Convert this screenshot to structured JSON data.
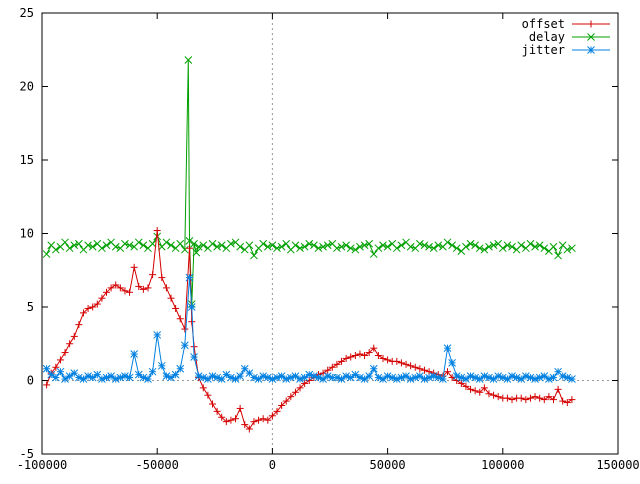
{
  "chart_data": {
    "type": "line",
    "xlim": [
      -100000,
      150000
    ],
    "ylim": [
      -5,
      25
    ],
    "x_ticks": [
      -100000,
      -50000,
      0,
      50000,
      100000,
      150000
    ],
    "x_tick_labels": [
      "-100000",
      "-50000",
      "0",
      "50000",
      "100000",
      "150000"
    ],
    "y_ticks": [
      -5,
      0,
      5,
      10,
      15,
      20,
      25
    ],
    "y_tick_labels": [
      "-5",
      "0",
      "5",
      "10",
      "15",
      "20",
      "25"
    ],
    "grid": false,
    "zero_axes": "dotted",
    "legend_position": "top-right",
    "series": [
      {
        "name": "offset",
        "color": "#d40000",
        "marker": "plus",
        "x": [
          -98000,
          -96000,
          -94000,
          -92000,
          -90000,
          -88000,
          -86000,
          -84000,
          -82000,
          -80000,
          -78000,
          -76000,
          -74000,
          -72000,
          -70000,
          -68000,
          -66000,
          -64000,
          -62000,
          -60000,
          -58000,
          -56000,
          -54000,
          -52000,
          -50000,
          -48000,
          -46000,
          -44000,
          -42000,
          -40000,
          -38000,
          -36000,
          -35000,
          -34000,
          -32000,
          -30000,
          -28000,
          -26000,
          -24000,
          -22000,
          -20000,
          -18000,
          -16000,
          -14000,
          -12000,
          -10000,
          -8000,
          -6000,
          -4000,
          -2000,
          0,
          2000,
          4000,
          6000,
          8000,
          10000,
          12000,
          14000,
          16000,
          18000,
          20000,
          22000,
          24000,
          26000,
          28000,
          30000,
          32000,
          34000,
          36000,
          38000,
          40000,
          42000,
          44000,
          46000,
          48000,
          50000,
          52000,
          54000,
          56000,
          58000,
          60000,
          62000,
          64000,
          66000,
          68000,
          70000,
          72000,
          74000,
          76000,
          78000,
          80000,
          82000,
          84000,
          86000,
          88000,
          90000,
          92000,
          94000,
          96000,
          98000,
          100000,
          102000,
          104000,
          106000,
          108000,
          110000,
          112000,
          114000,
          116000,
          118000,
          120000,
          122000,
          124000,
          126000,
          128000,
          130000
        ],
        "y": [
          -0.3,
          0.5,
          0.9,
          1.4,
          1.9,
          2.5,
          3.0,
          3.8,
          4.6,
          4.9,
          5.0,
          5.2,
          5.6,
          6.0,
          6.3,
          6.5,
          6.3,
          6.1,
          6.0,
          7.7,
          6.4,
          6.2,
          6.3,
          7.2,
          10.2,
          7.0,
          6.3,
          5.6,
          4.9,
          4.2,
          3.5,
          9.0,
          4.0,
          2.3,
          0.2,
          -0.5,
          -1.0,
          -1.6,
          -2.1,
          -2.5,
          -2.8,
          -2.7,
          -2.6,
          -1.9,
          -3.0,
          -3.3,
          -2.8,
          -2.7,
          -2.6,
          -2.7,
          -2.4,
          -2.1,
          -1.7,
          -1.4,
          -1.1,
          -0.8,
          -0.5,
          -0.2,
          0.0,
          0.2,
          0.4,
          0.5,
          0.7,
          0.9,
          1.1,
          1.3,
          1.5,
          1.6,
          1.7,
          1.8,
          1.7,
          1.9,
          2.2,
          1.7,
          1.5,
          1.4,
          1.3,
          1.3,
          1.2,
          1.1,
          1.0,
          0.9,
          0.8,
          0.7,
          0.6,
          0.5,
          0.4,
          0.3,
          0.6,
          0.2,
          0.0,
          -0.2,
          -0.4,
          -0.6,
          -0.7,
          -0.8,
          -0.5,
          -0.9,
          -1.0,
          -1.1,
          -1.2,
          -1.2,
          -1.3,
          -1.2,
          -1.2,
          -1.3,
          -1.2,
          -1.1,
          -1.2,
          -1.3,
          -1.1,
          -1.3,
          -0.6,
          -1.4,
          -1.5,
          -1.3
        ],
        "marker_every": 1
      },
      {
        "name": "delay",
        "color": "#00a000",
        "marker": "cross",
        "x": [
          -98000,
          -96000,
          -94000,
          -92000,
          -90000,
          -88000,
          -86000,
          -84000,
          -82000,
          -80000,
          -78000,
          -76000,
          -74000,
          -72000,
          -70000,
          -68000,
          -66000,
          -64000,
          -62000,
          -60000,
          -58000,
          -56000,
          -54000,
          -52000,
          -50000,
          -48000,
          -46000,
          -44000,
          -42000,
          -40000,
          -38000,
          -36500,
          -36000,
          -35000,
          -34000,
          -33000,
          -32000,
          -30000,
          -28000,
          -26000,
          -24000,
          -22000,
          -20000,
          -18000,
          -16000,
          -14000,
          -12000,
          -10000,
          -8000,
          -6000,
          -4000,
          -2000,
          0,
          2000,
          4000,
          6000,
          8000,
          10000,
          12000,
          14000,
          16000,
          18000,
          20000,
          22000,
          24000,
          26000,
          28000,
          30000,
          32000,
          34000,
          36000,
          38000,
          40000,
          42000,
          44000,
          46000,
          48000,
          50000,
          52000,
          54000,
          56000,
          58000,
          60000,
          62000,
          64000,
          66000,
          68000,
          70000,
          72000,
          74000,
          76000,
          78000,
          80000,
          82000,
          84000,
          86000,
          88000,
          90000,
          92000,
          94000,
          96000,
          98000,
          100000,
          102000,
          104000,
          106000,
          108000,
          110000,
          112000,
          114000,
          116000,
          118000,
          120000,
          122000,
          124000,
          126000,
          128000,
          130000
        ],
        "y": [
          8.6,
          9.2,
          8.9,
          9.1,
          9.4,
          9.0,
          9.2,
          9.3,
          8.9,
          9.2,
          9.1,
          9.3,
          9.0,
          9.2,
          9.4,
          9.1,
          9.0,
          9.3,
          9.2,
          9.1,
          9.4,
          9.2,
          9.0,
          9.3,
          9.8,
          9.1,
          9.4,
          9.2,
          9.0,
          9.3,
          8.9,
          21.8,
          9.5,
          5.2,
          9.3,
          8.7,
          9.1,
          9.2,
          9.0,
          9.3,
          9.1,
          9.2,
          9.0,
          9.3,
          9.4,
          9.1,
          8.9,
          9.2,
          8.5,
          9.0,
          9.3,
          9.1,
          9.2,
          9.0,
          9.1,
          9.3,
          8.9,
          9.2,
          9.0,
          9.1,
          9.3,
          9.2,
          9.0,
          9.1,
          9.2,
          9.3,
          9.0,
          9.1,
          9.2,
          9.0,
          8.9,
          9.1,
          9.2,
          9.3,
          8.6,
          9.0,
          9.2,
          9.1,
          9.3,
          9.0,
          9.2,
          9.4,
          9.1,
          9.0,
          9.3,
          9.2,
          9.1,
          9.0,
          9.2,
          9.1,
          9.4,
          9.2,
          9.0,
          8.8,
          9.1,
          9.3,
          9.2,
          9.0,
          8.9,
          9.1,
          9.2,
          9.3,
          9.0,
          9.2,
          9.1,
          8.9,
          9.2,
          9.0,
          9.3,
          9.1,
          9.2,
          9.0,
          8.8,
          9.1,
          8.5,
          9.2,
          8.9,
          9.0
        ]
      },
      {
        "name": "jitter",
        "color": "#0080e0",
        "marker": "star",
        "x": [
          -98000,
          -96000,
          -94000,
          -92000,
          -90000,
          -88000,
          -86000,
          -84000,
          -82000,
          -80000,
          -78000,
          -76000,
          -74000,
          -72000,
          -70000,
          -68000,
          -66000,
          -64000,
          -62000,
          -60000,
          -58000,
          -56000,
          -54000,
          -52000,
          -50000,
          -48000,
          -46000,
          -44000,
          -42000,
          -40000,
          -38000,
          -36000,
          -35000,
          -34000,
          -32000,
          -30000,
          -28000,
          -26000,
          -24000,
          -22000,
          -20000,
          -18000,
          -16000,
          -14000,
          -12000,
          -10000,
          -8000,
          -6000,
          -4000,
          -2000,
          0,
          2000,
          4000,
          6000,
          8000,
          10000,
          12000,
          14000,
          16000,
          18000,
          20000,
          22000,
          24000,
          26000,
          28000,
          30000,
          32000,
          34000,
          36000,
          38000,
          40000,
          42000,
          44000,
          46000,
          48000,
          50000,
          52000,
          54000,
          56000,
          58000,
          60000,
          62000,
          64000,
          66000,
          68000,
          70000,
          72000,
          74000,
          76000,
          78000,
          80000,
          82000,
          84000,
          86000,
          88000,
          90000,
          92000,
          94000,
          96000,
          98000,
          100000,
          102000,
          104000,
          106000,
          108000,
          110000,
          112000,
          114000,
          116000,
          118000,
          120000,
          122000,
          124000,
          126000,
          128000,
          130000
        ],
        "y": [
          0.8,
          0.4,
          0.2,
          0.6,
          0.1,
          0.3,
          0.5,
          0.2,
          0.1,
          0.3,
          0.2,
          0.4,
          0.1,
          0.2,
          0.3,
          0.1,
          0.2,
          0.3,
          0.2,
          1.8,
          0.4,
          0.2,
          0.1,
          0.6,
          3.1,
          1.0,
          0.3,
          0.2,
          0.4,
          0.8,
          2.4,
          7.0,
          5.0,
          1.6,
          0.3,
          0.2,
          0.1,
          0.3,
          0.2,
          0.1,
          0.4,
          0.2,
          0.1,
          0.3,
          0.8,
          0.5,
          0.2,
          0.1,
          0.3,
          0.2,
          0.1,
          0.2,
          0.3,
          0.1,
          0.2,
          0.3,
          0.1,
          0.2,
          0.4,
          0.3,
          0.2,
          0.1,
          0.3,
          0.2,
          0.2,
          0.1,
          0.3,
          0.2,
          0.4,
          0.2,
          0.1,
          0.3,
          0.8,
          0.2,
          0.1,
          0.3,
          0.2,
          0.1,
          0.2,
          0.3,
          0.1,
          0.2,
          0.3,
          0.1,
          0.2,
          0.3,
          0.2,
          0.1,
          2.2,
          1.2,
          0.3,
          0.2,
          0.1,
          0.3,
          0.2,
          0.1,
          0.3,
          0.2,
          0.1,
          0.3,
          0.2,
          0.1,
          0.3,
          0.2,
          0.1,
          0.3,
          0.2,
          0.1,
          0.2,
          0.3,
          0.1,
          0.2,
          0.6,
          0.3,
          0.2,
          0.1
        ]
      }
    ]
  }
}
